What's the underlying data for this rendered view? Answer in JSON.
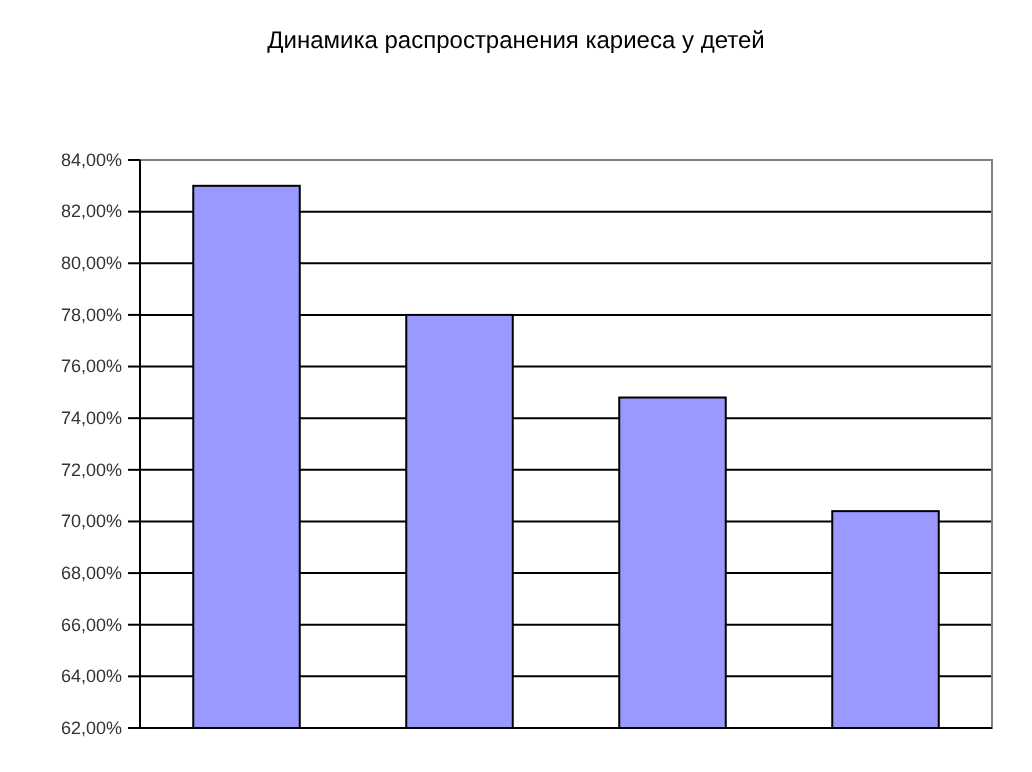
{
  "chart_data": {
    "type": "bar",
    "title": "Динамика распространения кариеса у детей",
    "categories": [
      null,
      null,
      null,
      null
    ],
    "values": [
      83,
      78,
      74.8,
      70.4
    ],
    "color": "#9999ff",
    "ylim": [
      62,
      84
    ],
    "yticks": [
      {
        "value": 62,
        "label": "62,00%"
      },
      {
        "value": 64,
        "label": "64,00%"
      },
      {
        "value": 66,
        "label": "66,00%"
      },
      {
        "value": 68,
        "label": "68,00%"
      },
      {
        "value": 70,
        "label": "70,00%"
      },
      {
        "value": 72,
        "label": "72,00%"
      },
      {
        "value": 74,
        "label": "74,00%"
      },
      {
        "value": 76,
        "label": "76,00%"
      },
      {
        "value": 78,
        "label": "78,00%"
      },
      {
        "value": 80,
        "label": "80,00%"
      },
      {
        "value": 82,
        "label": "82,00%"
      },
      {
        "value": 84,
        "label": "84,00%"
      }
    ],
    "grid": "y"
  }
}
